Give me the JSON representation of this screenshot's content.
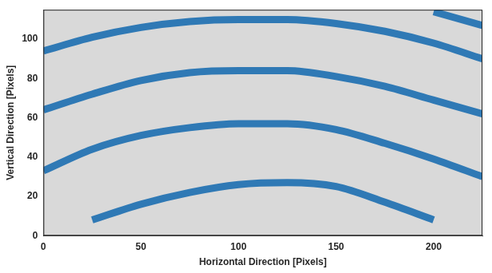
{
  "chart_data": {
    "type": "line",
    "x_label": "Horizontal Direction [Pixels]",
    "y_label": "Vertical Direction [Pixels]",
    "x": [
      0,
      25,
      50,
      75,
      100,
      125,
      150,
      175,
      200,
      225
    ],
    "series": [
      {
        "color": "#2f79b5",
        "values": [
          null,
          null,
          null,
          null,
          null,
          null,
          null,
          null,
          114,
          107
        ]
      },
      {
        "color": "#2f79b5",
        "values": [
          94,
          101,
          106,
          109,
          110,
          110,
          108,
          104,
          98,
          90
        ]
      },
      {
        "color": "#2f79b5",
        "values": [
          64,
          72,
          79,
          83,
          84,
          84,
          81,
          76,
          69,
          62
        ]
      },
      {
        "color": "#2f79b5",
        "values": [
          33,
          44,
          51,
          55,
          57,
          57,
          54,
          47,
          39,
          30
        ]
      },
      {
        "color": "#2f79b5",
        "values": [
          null,
          8,
          16,
          22,
          26,
          27,
          25,
          17,
          8,
          null
        ]
      }
    ],
    "xlim": [
      0,
      225
    ],
    "xticks": [
      0,
      50,
      100,
      150,
      200
    ],
    "ylim": [
      0,
      115
    ],
    "yticks": [
      0,
      20,
      40,
      60,
      80,
      100
    ],
    "grid": false,
    "marker": "none",
    "line_style": "solid"
  }
}
